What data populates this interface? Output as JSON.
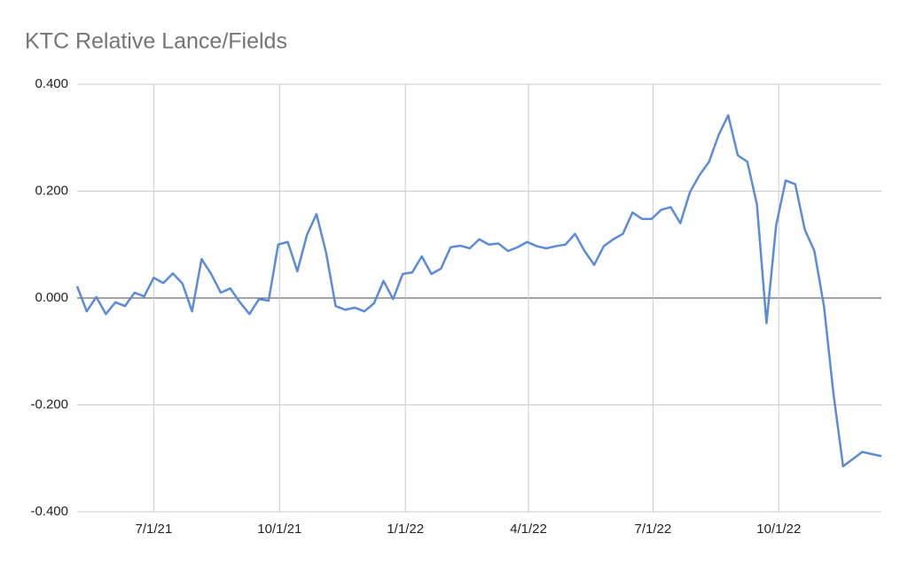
{
  "chart_data": {
    "type": "line",
    "title": "KTC Relative Lance/Fields",
    "x": [
      "5/6/21",
      "5/13/21",
      "5/20/21",
      "5/27/21",
      "6/3/21",
      "6/10/21",
      "6/17/21",
      "6/24/21",
      "7/1/21",
      "7/8/21",
      "7/15/21",
      "7/22/21",
      "7/29/21",
      "8/5/21",
      "8/12/21",
      "8/19/21",
      "8/26/21",
      "9/2/21",
      "9/9/21",
      "9/16/21",
      "9/23/21",
      "9/30/21",
      "10/7/21",
      "10/14/21",
      "10/21/21",
      "10/28/21",
      "11/4/21",
      "11/11/21",
      "11/18/21",
      "11/25/21",
      "12/2/21",
      "12/9/21",
      "12/16/21",
      "12/23/21",
      "12/30/21",
      "1/6/22",
      "1/13/22",
      "1/20/22",
      "1/27/22",
      "2/3/22",
      "2/10/22",
      "2/17/22",
      "2/24/22",
      "3/3/22",
      "3/10/22",
      "3/17/22",
      "3/24/22",
      "3/31/22",
      "4/7/22",
      "4/14/22",
      "4/21/22",
      "4/28/22",
      "5/5/22",
      "5/12/22",
      "5/19/22",
      "5/26/22",
      "6/2/22",
      "6/9/22",
      "6/16/22",
      "6/23/22",
      "6/30/22",
      "7/7/22",
      "7/14/22",
      "7/21/22",
      "7/28/22",
      "8/4/22",
      "8/11/22",
      "8/18/22",
      "8/25/22",
      "9/1/22",
      "9/8/22",
      "9/15/22",
      "9/22/22",
      "9/29/22",
      "10/6/22",
      "10/13/22",
      "10/20/22",
      "10/27/22",
      "11/3/22",
      "11/10/22",
      "11/17/22",
      "12/1/22",
      "12/15/22"
    ],
    "series": [
      {
        "name": "KTC Relative Lance/Fields",
        "color": "#5b8bd9",
        "values": [
          0.022,
          -0.025,
          0.002,
          -0.03,
          -0.008,
          -0.015,
          0.01,
          0.003,
          0.038,
          0.028,
          0.046,
          0.027,
          -0.025,
          0.073,
          0.045,
          0.01,
          0.018,
          -0.008,
          -0.03,
          -0.002,
          -0.005,
          0.1,
          0.105,
          0.05,
          0.118,
          0.157,
          0.085,
          -0.015,
          -0.022,
          -0.018,
          -0.025,
          -0.01,
          0.032,
          -0.002,
          0.045,
          0.048,
          0.078,
          0.045,
          0.055,
          0.095,
          0.098,
          0.093,
          0.11,
          0.1,
          0.102,
          0.088,
          0.095,
          0.105,
          0.097,
          0.093,
          0.097,
          0.1,
          0.12,
          0.088,
          0.062,
          0.097,
          0.11,
          0.12,
          0.16,
          0.148,
          0.148,
          0.165,
          0.17,
          0.14,
          0.198,
          0.23,
          0.255,
          0.305,
          0.342,
          0.267,
          0.255,
          0.175,
          -0.047,
          0.135,
          0.22,
          0.213,
          0.128,
          0.088,
          -0.015,
          -0.18,
          -0.315,
          -0.288,
          -0.296
        ]
      }
    ],
    "xlim": [
      "5/6/21",
      "12/15/22"
    ],
    "xticks": [
      "7/1/21",
      "10/1/21",
      "1/1/22",
      "4/1/22",
      "7/1/22",
      "10/1/22"
    ],
    "ylim": [
      -0.4,
      0.4
    ],
    "yticks": [
      {
        "value": -0.4,
        "label": "-0.400"
      },
      {
        "value": -0.2,
        "label": "-0.200"
      },
      {
        "value": 0,
        "label": "0.000"
      },
      {
        "value": 0.2,
        "label": "0.200"
      },
      {
        "value": 0.4,
        "label": "0.400"
      }
    ],
    "grid": true
  }
}
